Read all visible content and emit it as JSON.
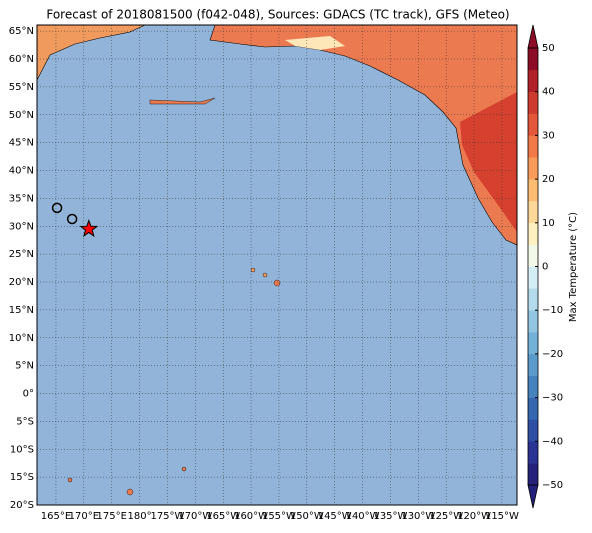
{
  "chart_data": {
    "type": "map",
    "title": "Forecast of 2018081500 (f042-048), Sources: GDACS (TC track), GFS (Meteo)",
    "xlim": [
      161.6,
      247.7
    ],
    "ylim": [
      -20,
      66.1
    ],
    "grid": true,
    "xticks": [
      {
        "value": 165,
        "label": "165°E"
      },
      {
        "value": 170,
        "label": "170°E"
      },
      {
        "value": 175,
        "label": "175°E"
      },
      {
        "value": 180,
        "label": "180°"
      },
      {
        "value": 185,
        "label": "175°W"
      },
      {
        "value": 190,
        "label": "170°W"
      },
      {
        "value": 195,
        "label": "165°W"
      },
      {
        "value": 200,
        "label": "160°W"
      },
      {
        "value": 205,
        "label": "155°W"
      },
      {
        "value": 210,
        "label": "150°W"
      },
      {
        "value": 215,
        "label": "145°W"
      },
      {
        "value": 220,
        "label": "140°W"
      },
      {
        "value": 225,
        "label": "135°W"
      },
      {
        "value": 230,
        "label": "130°W"
      },
      {
        "value": 235,
        "label": "125°W"
      },
      {
        "value": 240,
        "label": "120°W"
      },
      {
        "value": 245,
        "label": "115°W"
      }
    ],
    "yticks": [
      {
        "value": 65,
        "label": "65°N"
      },
      {
        "value": 60,
        "label": "60°N"
      },
      {
        "value": 55,
        "label": "55°N"
      },
      {
        "value": 50,
        "label": "50°N"
      },
      {
        "value": 45,
        "label": "45°N"
      },
      {
        "value": 40,
        "label": "40°N"
      },
      {
        "value": 35,
        "label": "35°N"
      },
      {
        "value": 30,
        "label": "30°N"
      },
      {
        "value": 25,
        "label": "25°N"
      },
      {
        "value": 20,
        "label": "20°N"
      },
      {
        "value": 15,
        "label": "15°N"
      },
      {
        "value": 10,
        "label": "10°N"
      },
      {
        "value": 5,
        "label": "5°N"
      },
      {
        "value": 0,
        "label": "0°"
      },
      {
        "value": -5,
        "label": "5°S"
      },
      {
        "value": -10,
        "label": "10°S"
      },
      {
        "value": -15,
        "label": "15°S"
      },
      {
        "value": -20,
        "label": "20°S"
      }
    ],
    "track": {
      "lon": [
        165.2,
        167.9,
        170.9
      ],
      "lat": [
        33.3,
        31.3,
        29.5
      ],
      "colors": [
        "none",
        "none",
        "#ff0000"
      ]
    },
    "colorbar": {
      "label": "Max Temperature (°C)",
      "lim": [
        -50,
        50
      ],
      "ticks": [
        50,
        40,
        30,
        20,
        10,
        0,
        {
          "value": -10,
          "label": "−10"
        },
        {
          "value": -20,
          "label": "−20"
        },
        {
          "value": -30,
          "label": "−30"
        },
        {
          "value": -40,
          "label": "−40"
        },
        {
          "value": -50,
          "label": "−50"
        }
      ],
      "colors": [
        "#23217a",
        "#2b3494",
        "#2f4fa6",
        "#3567b0",
        "#4682bd",
        "#5a9bcb",
        "#74b1d8",
        "#92c5e2",
        "#b3dbeb",
        "#d4ecf4",
        "#f2f9e8",
        "#fef0c0",
        "#fdd898",
        "#fcbc72",
        "#f99b5b",
        "#f17a48",
        "#e3573a",
        "#cd3a2e",
        "#b02129",
        "#8c0d25"
      ]
    }
  }
}
